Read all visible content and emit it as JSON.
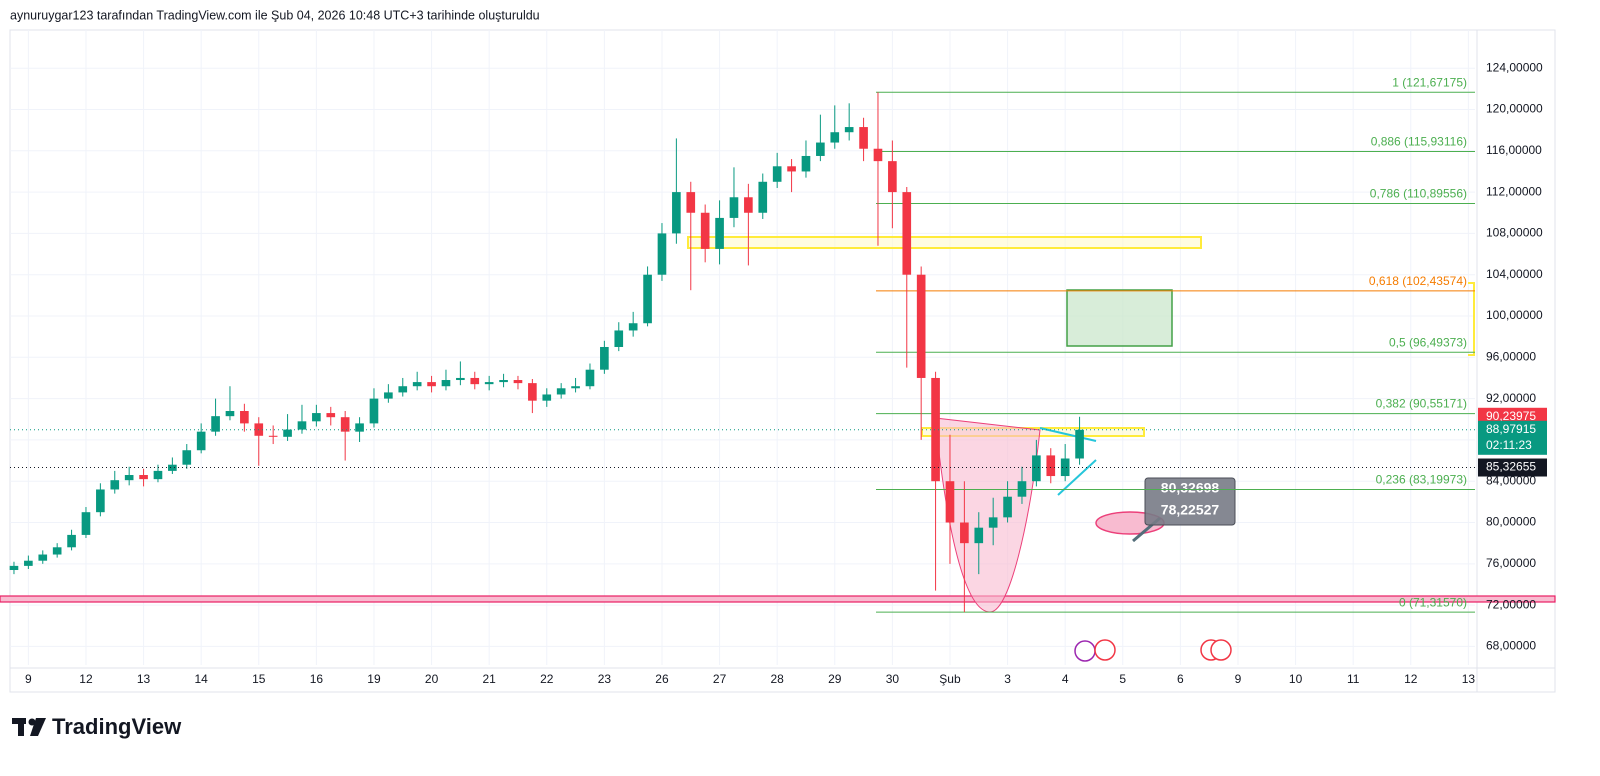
{
  "header": {
    "text": "aynuruygar123 tarafından TradingView.com ile Şub 04, 2026 10:48 UTC+3 tarihinde oluşturuldu"
  },
  "footer": {
    "brand": "TradingView"
  },
  "chart_data": {
    "type": "candlestick",
    "up_color": "#089981",
    "down_color": "#f23645",
    "grid": true,
    "open": [
      75.4,
      75.8,
      76.3,
      76.9,
      77.6,
      78.8,
      81.0,
      83.2,
      84.1,
      84.6,
      84.2,
      85.0,
      85.6,
      87.0,
      88.8,
      90.3,
      90.8,
      89.6,
      88.4,
      88.3,
      89.0,
      89.8,
      90.6,
      90.2,
      88.8,
      89.6,
      92.0,
      92.6,
      93.2,
      93.6,
      93.2,
      93.8,
      94.0,
      93.4,
      93.6,
      93.8,
      93.5,
      91.8,
      92.4,
      93.0,
      93.2,
      94.8,
      97.0,
      98.6,
      99.3,
      104.0,
      108.0,
      112.0,
      110.0,
      106.5,
      109.5,
      111.5,
      110.0,
      113.0,
      114.5,
      114.0,
      115.5,
      116.8,
      117.8,
      118.3,
      116.2,
      115.0,
      112.0,
      104.0,
      94.0,
      84.0,
      80.0,
      78.0,
      79.5,
      80.5,
      82.5,
      84.0,
      86.5,
      84.5,
      86.2
    ],
    "high": [
      76.2,
      76.8,
      77.3,
      78.0,
      79.3,
      81.5,
      83.8,
      85.0,
      85.4,
      85.2,
      85.6,
      86.3,
      87.6,
      89.6,
      92.0,
      93.2,
      91.5,
      90.2,
      89.4,
      90.5,
      91.4,
      91.4,
      91.2,
      90.8,
      90.2,
      93.0,
      93.4,
      94.0,
      94.6,
      94.2,
      94.8,
      95.6,
      94.6,
      94.2,
      94.4,
      94.2,
      93.9,
      93.0,
      93.5,
      94.0,
      95.4,
      97.6,
      99.4,
      100.4,
      104.8,
      109.0,
      117.2,
      113.0,
      110.8,
      111.2,
      114.4,
      112.8,
      113.8,
      115.8,
      115.2,
      117.0,
      119.5,
      120.4,
      120.6,
      119.2,
      121.67175,
      117.0,
      112.5,
      104.8,
      94.6,
      88.5,
      84.0,
      81.0,
      82.4,
      84.0,
      85.4,
      88.0,
      87.2,
      87.6,
      90.23975
    ],
    "low": [
      75.0,
      75.5,
      76.0,
      76.6,
      77.3,
      78.5,
      80.6,
      82.8,
      83.6,
      83.5,
      83.9,
      84.7,
      85.2,
      86.7,
      88.4,
      89.9,
      88.8,
      85.5,
      87.6,
      87.9,
      88.6,
      89.3,
      89.4,
      86.0,
      87.8,
      89.2,
      91.6,
      92.2,
      92.8,
      92.6,
      92.8,
      93.3,
      92.9,
      92.8,
      93.1,
      92.9,
      90.6,
      91.2,
      92.0,
      92.6,
      92.9,
      94.4,
      96.6,
      98.0,
      99.0,
      103.4,
      107.0,
      102.5,
      105.2,
      105.0,
      108.6,
      104.9,
      109.4,
      112.4,
      112.0,
      113.4,
      115.0,
      116.2,
      117.0,
      115.0,
      106.8,
      108.5,
      95.0,
      88.0,
      73.4,
      76.0,
      71.3157,
      75.0,
      77.8,
      80.0,
      81.8,
      83.5,
      83.8,
      84.0,
      85.6
    ],
    "close": [
      75.8,
      76.3,
      76.9,
      77.6,
      78.8,
      81.0,
      83.2,
      84.1,
      84.6,
      84.2,
      85.0,
      85.6,
      87.0,
      88.8,
      90.3,
      90.8,
      89.6,
      88.4,
      88.3,
      89.0,
      89.8,
      90.6,
      90.2,
      88.8,
      89.6,
      92.0,
      92.6,
      93.2,
      93.6,
      93.2,
      93.8,
      94.0,
      93.4,
      93.6,
      93.8,
      93.5,
      91.8,
      92.4,
      93.0,
      93.2,
      94.8,
      97.0,
      98.6,
      99.3,
      104.0,
      108.0,
      112.0,
      110.0,
      106.5,
      109.5,
      111.5,
      110.0,
      113.0,
      114.5,
      114.0,
      115.5,
      116.8,
      117.8,
      118.3,
      116.2,
      115.0,
      112.0,
      104.0,
      94.0,
      84.0,
      80.0,
      78.0,
      79.5,
      80.5,
      82.5,
      84.0,
      86.5,
      84.5,
      86.2,
      88.97915
    ],
    "xlim": [
      -0.97,
      101.46
    ],
    "xticks": [
      {
        "value": 1,
        "label": "9"
      },
      {
        "value": 5,
        "label": "12"
      },
      {
        "value": 9,
        "label": "13"
      },
      {
        "value": 13,
        "label": "14"
      },
      {
        "value": 17,
        "label": "15"
      },
      {
        "value": 21,
        "label": "16"
      },
      {
        "value": 25,
        "label": "19"
      },
      {
        "value": 29,
        "label": "20"
      },
      {
        "value": 33,
        "label": "21"
      },
      {
        "value": 37,
        "label": "22"
      },
      {
        "value": 41,
        "label": "23"
      },
      {
        "value": 45,
        "label": "26"
      },
      {
        "value": 49,
        "label": "27"
      },
      {
        "value": 53,
        "label": "28"
      },
      {
        "value": 57,
        "label": "29"
      },
      {
        "value": 61,
        "label": "30"
      },
      {
        "value": 65,
        "label": "Şub"
      },
      {
        "value": 69,
        "label": "3"
      },
      {
        "value": 73,
        "label": "4"
      },
      {
        "value": 77,
        "label": "5"
      },
      {
        "value": 81,
        "label": "6"
      },
      {
        "value": 85,
        "label": "9"
      },
      {
        "value": 89,
        "label": "10"
      },
      {
        "value": 93,
        "label": "11"
      },
      {
        "value": 97,
        "label": "12"
      },
      {
        "value": 101,
        "label": "13"
      }
    ],
    "ylim": [
      66.2,
      127.7
    ],
    "yticks": [
      {
        "value": 68,
        "label": "68,00000"
      },
      {
        "value": 72,
        "label": "72,00000"
      },
      {
        "value": 76,
        "label": "76,00000"
      },
      {
        "value": 80,
        "label": "80,00000"
      },
      {
        "value": 84,
        "label": "84,00000"
      },
      {
        "value": 88,
        "label": "88,00000"
      },
      {
        "value": 92,
        "label": "92,00000"
      },
      {
        "value": 96,
        "label": "96,00000"
      },
      {
        "value": 100,
        "label": "100,00000"
      },
      {
        "value": 104,
        "label": "104,00000"
      },
      {
        "value": 108,
        "label": "108,00000"
      },
      {
        "value": 112,
        "label": "112,00000"
      },
      {
        "value": 116,
        "label": "116,00000"
      },
      {
        "value": 120,
        "label": "120,00000"
      },
      {
        "value": 124,
        "label": "124,00000"
      }
    ],
    "fib_levels": [
      {
        "value": 121.67175,
        "label": "1 (121,67175)",
        "color": "#4caf50"
      },
      {
        "value": 115.93116,
        "label": "0,886 (115,93116)",
        "color": "#4caf50"
      },
      {
        "value": 110.89556,
        "label": "0,786 (110,89556)",
        "color": "#4caf50"
      },
      {
        "value": 102.43574,
        "label": "0,618 (102,43574)",
        "color": "#f57c00"
      },
      {
        "value": 96.49373,
        "label": "0,5 (96,49373)",
        "color": "#4caf50"
      },
      {
        "value": 90.55171,
        "label": "0,382 (90,55171)",
        "color": "#4caf50"
      },
      {
        "value": 83.19973,
        "label": "0,236 (83,19973)",
        "color": "#4caf50"
      },
      {
        "value": 71.3157,
        "label": "0 (71,31570)",
        "color": "#4caf50"
      }
    ],
    "price_labels": [
      {
        "value": 90.23975,
        "label": "90,23975",
        "color": "#f23645",
        "line": false
      },
      {
        "value": 88.97915,
        "label": "88,97915",
        "color": "#089981",
        "line": true
      },
      {
        "value": 85.32655,
        "label": "85,32655",
        "color": "#131722",
        "line": true
      }
    ],
    "countdown": "02:11:23",
    "annotations": [
      "80,32698",
      "78,22527"
    ]
  }
}
